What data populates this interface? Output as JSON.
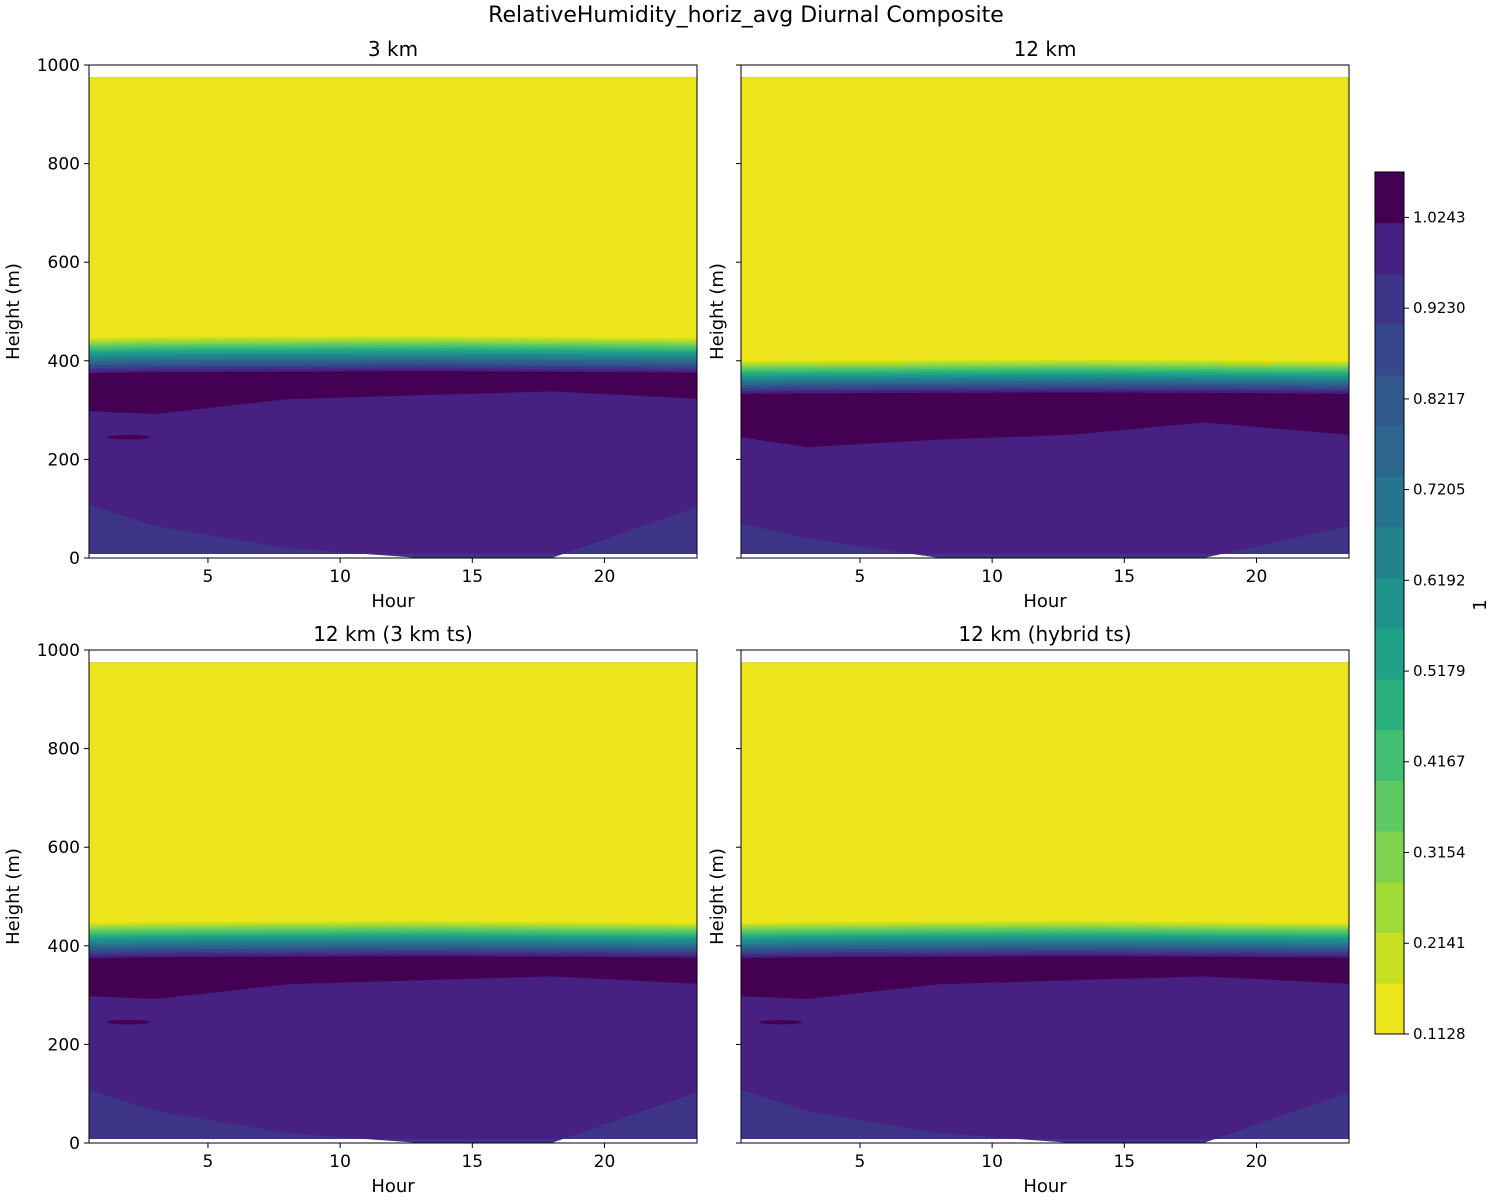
{
  "chart_data": {
    "type": "heatmap",
    "title": "RelativeHumidity_horiz_avg Diurnal Composite",
    "xlabel": "Hour",
    "ylabel": "Height (m)",
    "xlim": [
      0.5,
      23.5
    ],
    "ylim": [
      0,
      1000
    ],
    "x_ticks": [
      5,
      10,
      15,
      20
    ],
    "y_ticks": [
      0,
      200,
      400,
      600,
      800,
      1000
    ],
    "colorbar": {
      "label": "1",
      "min": 0.1128,
      "max": 1.075,
      "tick_values": [
        0.1128,
        0.2141,
        0.3154,
        0.4167,
        0.5179,
        0.6192,
        0.7205,
        0.8217,
        0.923,
        1.0243
      ],
      "tick_labels": [
        "0.1128",
        "0.2141",
        "0.3154",
        "0.4167",
        "0.5179",
        "0.6192",
        "0.7205",
        "0.8217",
        "0.9230",
        "1.0243"
      ],
      "colors": [
        "#ece51b",
        "#c8e020",
        "#a2da37",
        "#7fd34e",
        "#5ec962",
        "#41be71",
        "#2ab07f",
        "#1fa187",
        "#1f928c",
        "#22838e",
        "#27748e",
        "#2c668e",
        "#31578d",
        "#37478b",
        "#3e3588",
        "#462181",
        "#440154"
      ]
    },
    "panels": [
      {
        "title": "3 km",
        "show_xlabels": true,
        "show_ylabels": true,
        "data_top": 975,
        "transition": {
          "bottom": [
            375,
            377,
            378,
            379,
            378,
            376
          ],
          "top": [
            445,
            447,
            448,
            449,
            447,
            445
          ]
        },
        "band_030": [
          298,
          292,
          322,
          330,
          338,
          323
        ],
        "band_085": [
          108,
          65,
          20,
          0,
          0,
          103
        ],
        "streak": {
          "hour": 2.0,
          "height": 245
        }
      },
      {
        "title": "12 km",
        "show_xlabels": true,
        "show_ylabels": false,
        "data_top": 975,
        "transition": {
          "bottom": [
            333,
            334,
            335,
            336,
            335,
            333
          ],
          "top": [
            398,
            399,
            400,
            401,
            400,
            398
          ]
        },
        "band_030": [
          245,
          225,
          240,
          250,
          275,
          250
        ],
        "band_085": [
          70,
          40,
          0,
          0,
          0,
          65
        ],
        "streak": null
      },
      {
        "title": "12 km (3 km ts)",
        "show_xlabels": true,
        "show_ylabels": true,
        "data_top": 975,
        "transition": {
          "bottom": [
            375,
            377,
            378,
            379,
            378,
            376
          ],
          "top": [
            445,
            447,
            448,
            449,
            447,
            445
          ]
        },
        "band_030": [
          298,
          292,
          322,
          330,
          338,
          323
        ],
        "band_085": [
          108,
          65,
          20,
          0,
          0,
          103
        ],
        "streak": {
          "hour": 2.0,
          "height": 245
        }
      },
      {
        "title": "12 km (hybrid ts)",
        "show_xlabels": true,
        "show_ylabels": true,
        "data_top": 975,
        "transition": {
          "bottom": [
            375,
            377,
            378,
            379,
            378,
            376
          ],
          "top": [
            445,
            447,
            448,
            449,
            447,
            445
          ]
        },
        "band_030": [
          298,
          292,
          322,
          330,
          338,
          323
        ],
        "band_085": [
          108,
          65,
          20,
          0,
          0,
          103
        ],
        "streak": {
          "hour": 2.0,
          "height": 245
        }
      }
    ],
    "profile_hours": [
      0.5,
      3,
      8,
      13,
      18,
      23.5
    ]
  }
}
